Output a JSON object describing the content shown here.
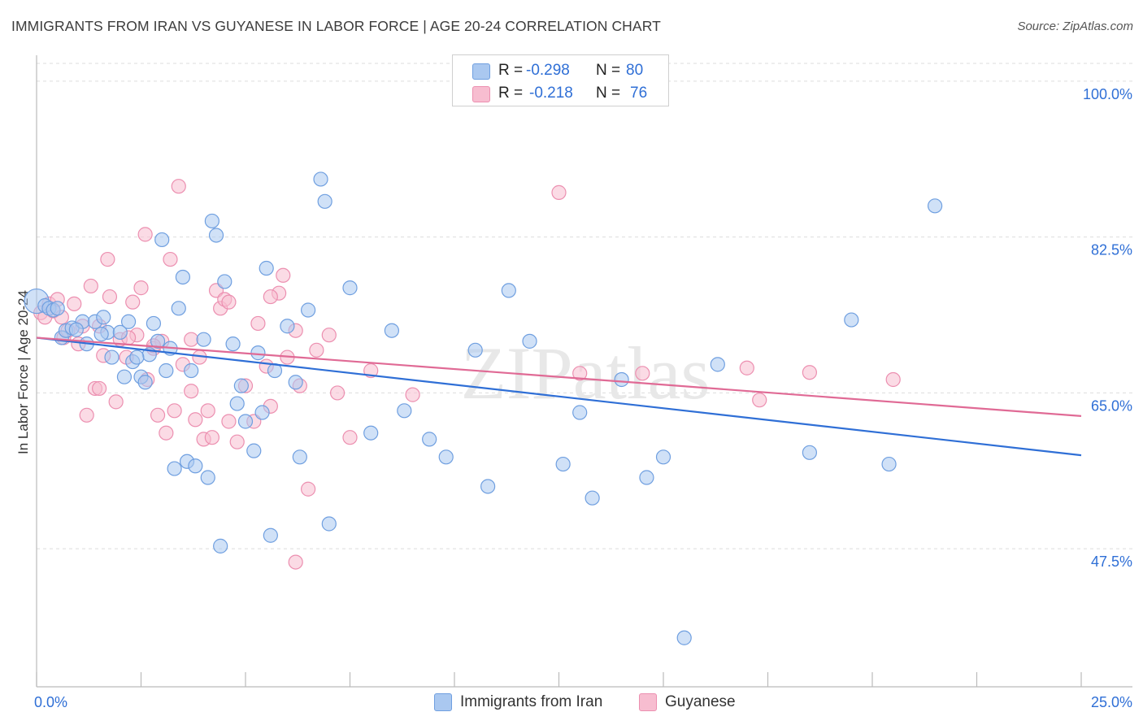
{
  "title": "IMMIGRANTS FROM IRAN VS GUYANESE IN LABOR FORCE | AGE 20-24 CORRELATION CHART",
  "source": "Source: ZipAtlas.com",
  "watermark": "ZIPatlas",
  "legend_top": {
    "rows": [
      {
        "r_label": "R = ",
        "r_value": "-0.298",
        "n_label": "N = ",
        "n_value": "80"
      },
      {
        "r_label": "R = ",
        "r_value": "-0.218",
        "n_label": "N = ",
        "n_value": "76"
      }
    ]
  },
  "legend_bottom": [
    "Immigrants from Iran",
    "Guyanese"
  ],
  "colors": {
    "iran_fill": "#aac8f0",
    "iran_stroke": "#6f9fe0",
    "iran_line": "#2f6fd6",
    "guy_fill": "#f7bdd0",
    "guy_stroke": "#ec8fb0",
    "guy_line": "#e06a95",
    "tick_label": "#2f6fd6",
    "grid": "#dddddd"
  },
  "chart_data": {
    "type": "scatter",
    "ylabel": "In Labor Force | Age 20-24",
    "xlim": [
      0.0,
      25.0
    ],
    "ylim": [
      32.0,
      102.0
    ],
    "x_tick_labels": [
      "0.0%",
      "25.0%"
    ],
    "y_ticks": [
      100.0,
      82.5,
      65.0,
      47.5
    ],
    "y_tick_labels": [
      "100.0%",
      "82.5%",
      "65.0%",
      "47.5%"
    ],
    "grid": true,
    "series": [
      {
        "name": "Immigrants from Iran",
        "trend": {
          "x": [
            0.0,
            25.0
          ],
          "y": [
            71.2,
            58.0
          ]
        },
        "points": [
          [
            0.0,
            75.3
          ],
          [
            0.2,
            74.8
          ],
          [
            0.3,
            74.5
          ],
          [
            0.4,
            74.3
          ],
          [
            0.5,
            74.5
          ],
          [
            0.6,
            71.2
          ],
          [
            0.7,
            72.0
          ],
          [
            0.85,
            72.3
          ],
          [
            1.1,
            73.0
          ],
          [
            1.2,
            70.5
          ],
          [
            1.4,
            73.0
          ],
          [
            1.6,
            73.5
          ],
          [
            1.7,
            71.8
          ],
          [
            1.8,
            69.0
          ],
          [
            2.0,
            71.8
          ],
          [
            2.1,
            66.8
          ],
          [
            2.2,
            73.0
          ],
          [
            2.3,
            68.5
          ],
          [
            2.5,
            66.8
          ],
          [
            2.6,
            66.2
          ],
          [
            2.7,
            69.3
          ],
          [
            2.8,
            72.8
          ],
          [
            2.9,
            70.8
          ],
          [
            3.0,
            82.2
          ],
          [
            3.1,
            67.5
          ],
          [
            3.2,
            70.0
          ],
          [
            3.3,
            56.5
          ],
          [
            3.4,
            74.5
          ],
          [
            3.5,
            78.0
          ],
          [
            3.6,
            57.3
          ],
          [
            3.7,
            67.5
          ],
          [
            3.8,
            56.8
          ],
          [
            4.0,
            71.0
          ],
          [
            4.1,
            55.5
          ],
          [
            4.2,
            84.3
          ],
          [
            4.3,
            82.7
          ],
          [
            4.4,
            47.8
          ],
          [
            4.5,
            77.5
          ],
          [
            4.7,
            70.5
          ],
          [
            4.8,
            63.8
          ],
          [
            4.9,
            65.8
          ],
          [
            5.0,
            61.8
          ],
          [
            5.2,
            58.5
          ],
          [
            5.3,
            69.5
          ],
          [
            5.4,
            62.8
          ],
          [
            5.5,
            79.0
          ],
          [
            5.6,
            49.0
          ],
          [
            5.7,
            67.5
          ],
          [
            6.0,
            72.5
          ],
          [
            6.2,
            66.2
          ],
          [
            6.3,
            57.8
          ],
          [
            6.5,
            74.3
          ],
          [
            6.8,
            89.0
          ],
          [
            6.9,
            86.5
          ],
          [
            7.0,
            50.3
          ],
          [
            7.5,
            76.8
          ],
          [
            8.0,
            60.5
          ],
          [
            8.5,
            72.0
          ],
          [
            8.8,
            63.0
          ],
          [
            9.4,
            59.8
          ],
          [
            9.8,
            57.8
          ],
          [
            10.5,
            69.8
          ],
          [
            10.8,
            54.5
          ],
          [
            11.3,
            76.5
          ],
          [
            11.8,
            70.8
          ],
          [
            12.6,
            57.0
          ],
          [
            13.0,
            62.8
          ],
          [
            13.3,
            53.2
          ],
          [
            14.0,
            66.5
          ],
          [
            14.6,
            55.5
          ],
          [
            15.0,
            57.8
          ],
          [
            16.3,
            68.2
          ],
          [
            18.5,
            58.3
          ],
          [
            19.5,
            73.2
          ],
          [
            20.4,
            57.0
          ],
          [
            21.5,
            86.0
          ],
          [
            15.5,
            37.5
          ],
          [
            2.4,
            69.0
          ],
          [
            1.55,
            71.6
          ],
          [
            0.95,
            72.1
          ]
        ]
      },
      {
        "name": "Guyanese",
        "trend": {
          "x": [
            0.0,
            25.0
          ],
          "y": [
            71.2,
            62.4
          ]
        },
        "points": [
          [
            0.1,
            74.0
          ],
          [
            0.2,
            73.5
          ],
          [
            0.3,
            75.0
          ],
          [
            0.4,
            74.2
          ],
          [
            0.5,
            75.5
          ],
          [
            0.6,
            73.5
          ],
          [
            0.65,
            71.2
          ],
          [
            0.75,
            72.0
          ],
          [
            0.9,
            75.0
          ],
          [
            1.0,
            70.5
          ],
          [
            1.1,
            72.5
          ],
          [
            1.2,
            62.5
          ],
          [
            1.3,
            77.0
          ],
          [
            1.4,
            65.5
          ],
          [
            1.5,
            72.5
          ],
          [
            1.6,
            69.2
          ],
          [
            1.7,
            80.0
          ],
          [
            1.75,
            75.8
          ],
          [
            1.9,
            64.0
          ],
          [
            2.0,
            71.0
          ],
          [
            2.15,
            69.0
          ],
          [
            2.3,
            75.2
          ],
          [
            2.4,
            71.5
          ],
          [
            2.5,
            76.8
          ],
          [
            2.6,
            82.8
          ],
          [
            2.65,
            66.5
          ],
          [
            2.8,
            70.0
          ],
          [
            2.9,
            62.5
          ],
          [
            3.0,
            70.8
          ],
          [
            3.1,
            60.5
          ],
          [
            3.2,
            80.0
          ],
          [
            3.3,
            63.0
          ],
          [
            3.4,
            88.2
          ],
          [
            3.5,
            68.2
          ],
          [
            3.7,
            65.2
          ],
          [
            3.8,
            62.0
          ],
          [
            3.9,
            69.0
          ],
          [
            4.0,
            59.8
          ],
          [
            4.1,
            63.0
          ],
          [
            4.2,
            60.0
          ],
          [
            4.3,
            76.5
          ],
          [
            4.4,
            74.5
          ],
          [
            4.5,
            75.5
          ],
          [
            4.6,
            61.8
          ],
          [
            4.8,
            59.5
          ],
          [
            5.0,
            65.8
          ],
          [
            5.2,
            61.8
          ],
          [
            5.3,
            72.8
          ],
          [
            5.5,
            68.0
          ],
          [
            5.6,
            63.5
          ],
          [
            5.8,
            76.2
          ],
          [
            5.9,
            78.2
          ],
          [
            6.0,
            69.0
          ],
          [
            6.2,
            72.0
          ],
          [
            6.3,
            65.8
          ],
          [
            6.5,
            54.2
          ],
          [
            6.7,
            69.8
          ],
          [
            7.0,
            71.5
          ],
          [
            7.2,
            65.0
          ],
          [
            7.5,
            60.0
          ],
          [
            8.0,
            67.5
          ],
          [
            9.0,
            64.8
          ],
          [
            1.5,
            65.5
          ],
          [
            6.2,
            46.0
          ],
          [
            12.5,
            87.5
          ],
          [
            13.0,
            67.2
          ],
          [
            14.5,
            67.2
          ],
          [
            17.0,
            67.8
          ],
          [
            17.3,
            64.2
          ],
          [
            18.5,
            67.3
          ],
          [
            20.5,
            66.5
          ],
          [
            2.2,
            71.2
          ],
          [
            4.6,
            75.2
          ],
          [
            5.6,
            75.8
          ],
          [
            3.7,
            71.0
          ],
          [
            2.8,
            70.3
          ]
        ]
      }
    ]
  }
}
